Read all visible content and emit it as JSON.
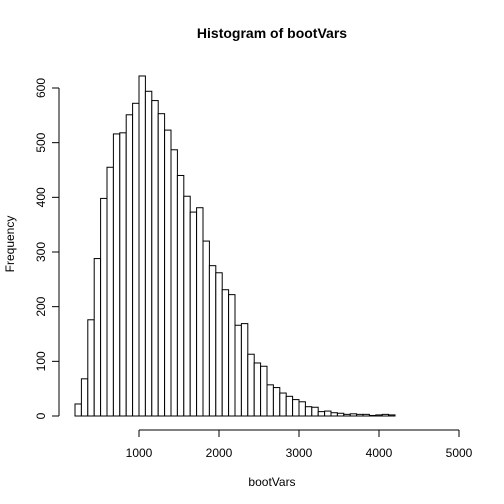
{
  "chart_data": {
    "type": "bar",
    "title": "Histogram of bootVars",
    "xlabel": "bootVars",
    "ylabel": "Frequency",
    "bin_width": 80,
    "bin_start": 200,
    "xlim": [
      200,
      5000
    ],
    "ylim": [
      0,
      620
    ],
    "x_ticks": [
      1000,
      2000,
      3000,
      4000,
      5000
    ],
    "y_ticks": [
      0,
      100,
      200,
      300,
      400,
      500,
      600
    ],
    "values": [
      22,
      68,
      176,
      288,
      398,
      455,
      516,
      518,
      551,
      572,
      622,
      594,
      577,
      553,
      523,
      487,
      440,
      402,
      373,
      381,
      320,
      275,
      262,
      231,
      222,
      166,
      169,
      113,
      97,
      91,
      57,
      52,
      42,
      36,
      30,
      26,
      17,
      16,
      8,
      9,
      6,
      5,
      3,
      4,
      3,
      3,
      1,
      2,
      3,
      2
    ]
  }
}
